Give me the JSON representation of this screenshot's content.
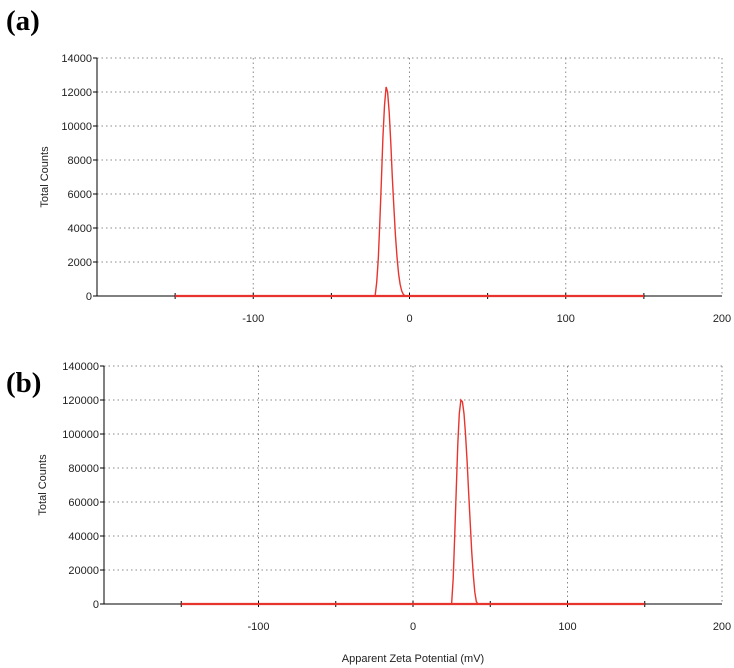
{
  "chart_data": [
    {
      "type": "line",
      "panel_label": "(a)",
      "xlabel": "",
      "ylabel": "Total Counts",
      "xlim": [
        -200,
        200
      ],
      "ylim": [
        0,
        14000
      ],
      "x_ticks": [
        -100,
        0,
        100,
        200
      ],
      "y_ticks": [
        0,
        2000,
        4000,
        6000,
        8000,
        10000,
        12000,
        14000
      ],
      "baseline_range": [
        -150,
        150
      ],
      "grid": true,
      "series": [
        {
          "color": "#e8342e",
          "x": [
            -22,
            -21,
            -20,
            -19,
            -18,
            -17,
            -16,
            -15,
            -14,
            -13,
            -12,
            -11,
            -10,
            -9,
            -8,
            -7,
            -6,
            -5,
            -4,
            -3,
            -2
          ],
          "y": [
            0,
            800,
            2200,
            4300,
            6800,
            9300,
            11200,
            12300,
            12000,
            10800,
            9000,
            7000,
            5200,
            3600,
            2300,
            1300,
            700,
            300,
            100,
            20,
            0
          ]
        }
      ]
    },
    {
      "type": "line",
      "panel_label": "(b)",
      "xlabel": "Apparent Zeta Potential (mV)",
      "ylabel": "Total Counts",
      "xlim": [
        -200,
        200
      ],
      "ylim": [
        0,
        140000
      ],
      "x_ticks": [
        -100,
        0,
        100,
        200
      ],
      "y_ticks": [
        0,
        20000,
        40000,
        60000,
        80000,
        100000,
        120000,
        140000
      ],
      "baseline_range": [
        -150,
        150
      ],
      "grid": true,
      "series": [
        {
          "color": "#e8342e",
          "x": [
            25,
            26,
            27,
            28,
            29,
            30,
            31,
            32,
            33,
            34,
            35,
            36,
            37,
            38,
            39,
            40,
            41,
            42
          ],
          "y": [
            0,
            15000,
            40000,
            68000,
            94000,
            112000,
            120000,
            119000,
            112000,
            100000,
            84000,
            66000,
            48000,
            31000,
            17000,
            7000,
            1500,
            0
          ]
        }
      ]
    }
  ]
}
